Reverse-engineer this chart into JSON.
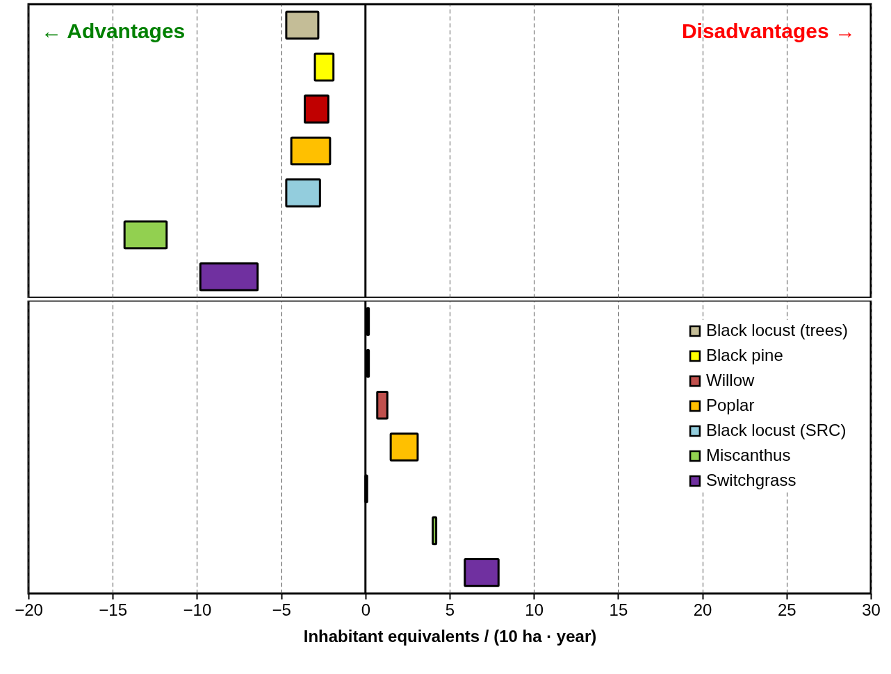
{
  "chart_data": [
    {
      "type": "bar",
      "orientation": "horizontal",
      "categories": [
        null,
        null,
        null,
        null,
        null,
        null,
        null
      ],
      "values": [
        1.9,
        1.1,
        1.4,
        2.3,
        2.0,
        2.5,
        3.4
      ],
      "base": [
        -4.7,
        -3.0,
        -3.6,
        -4.4,
        -4.7,
        -14.3,
        -9.8
      ],
      "colors": [
        "#c4bd97",
        "#ffff00",
        "#c00000",
        "#ffc000",
        "#93cddd",
        "#92d050",
        "#7030a0"
      ],
      "xlim": [
        -20,
        30
      ],
      "xticks": [
        -20,
        -15,
        -10,
        -5,
        0,
        5,
        10,
        15,
        20,
        25,
        30
      ],
      "tick_labels": false,
      "grid": "x",
      "ref_lines": [
        {
          "axis": "x",
          "value": 0
        }
      ],
      "annotations": [
        "← Advantages",
        "Disadvantages →"
      ]
    },
    {
      "type": "bar",
      "orientation": "horizontal",
      "categories": [
        null,
        null,
        null,
        null,
        null,
        null,
        null
      ],
      "series": [
        {
          "name": "Black locust (trees)",
          "color": "#c4bd97",
          "values": [
            0.1,
            null,
            null,
            null,
            null,
            null,
            null
          ],
          "base": [
            0.1,
            null,
            null,
            null,
            null,
            null,
            null
          ]
        },
        {
          "name": "Black pine",
          "color": "#ffff00",
          "values": [
            null,
            0.1,
            null,
            null,
            null,
            null,
            null
          ],
          "base": [
            null,
            0.1,
            null,
            null,
            null,
            null,
            null
          ]
        },
        {
          "name": "Willow",
          "color": "#c0504d",
          "values": [
            null,
            null,
            0.6,
            null,
            null,
            null,
            null
          ],
          "base": [
            null,
            null,
            0.7,
            null,
            null,
            null,
            null
          ]
        },
        {
          "name": "Poplar",
          "color": "#ffc000",
          "values": [
            null,
            null,
            null,
            1.6,
            null,
            null,
            null
          ],
          "base": [
            null,
            null,
            null,
            1.5,
            null,
            null,
            null
          ]
        },
        {
          "name": "Black locust (SRC)",
          "color": "#93cddd",
          "values": [
            null,
            null,
            null,
            null,
            0.1,
            null,
            null
          ],
          "base": [
            null,
            null,
            null,
            null,
            0.0,
            null,
            null
          ]
        },
        {
          "name": "Miscanthus",
          "color": "#92d050",
          "values": [
            null,
            null,
            null,
            null,
            null,
            0.2,
            null
          ],
          "base": [
            null,
            null,
            null,
            null,
            null,
            4.0,
            null
          ]
        },
        {
          "name": "Switchgrass",
          "color": "#7030a0",
          "values": [
            null,
            null,
            null,
            null,
            null,
            null,
            2.0
          ],
          "base": [
            null,
            null,
            null,
            null,
            null,
            null,
            5.9
          ]
        }
      ],
      "xlim": [
        -20,
        30
      ],
      "xticks": [
        -20,
        -15,
        -10,
        -5,
        0,
        5,
        10,
        15,
        20,
        25,
        30
      ],
      "tick_labels": "x",
      "grid": "x",
      "legend": "top right",
      "ref_lines": [
        {
          "axis": "x",
          "value": 0
        }
      ],
      "xlabel": "Inhabitant equivalents / (10 ha · year)"
    }
  ]
}
